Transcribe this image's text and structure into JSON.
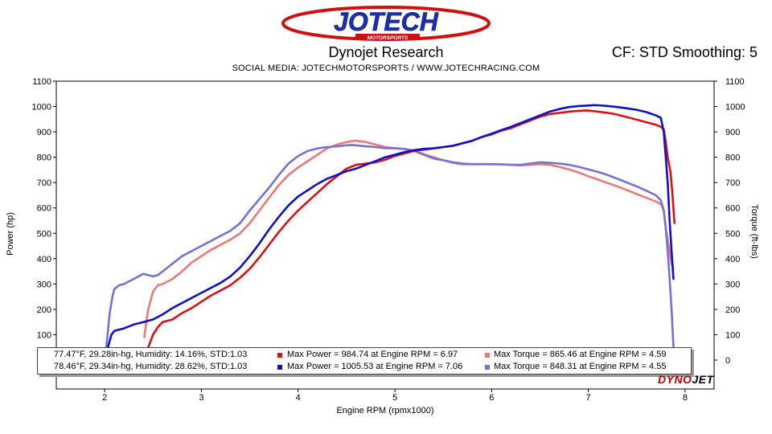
{
  "header": {
    "logo_text": "JOTECH",
    "logo_subtext": "MOTORSPORTS",
    "title": "Dynojet Research",
    "correction": "CF: STD Smoothing: 5",
    "subtitle": "SOCIAL MEDIA: JOTECHMOTORSPORTS   /   WWW.JOTECHRACING.COM"
  },
  "branding": {
    "dyno_a": "DYNO",
    "dyno_b": "JET"
  },
  "colors": {
    "run1_power": "#e01010",
    "run1_torque": "#ee7878",
    "run2_power": "#1010c8",
    "run2_torque": "#7272dc"
  },
  "legend": {
    "rows": [
      {
        "conditions": "77.47°F, 29.28in-hg, Humidity: 14.16%, STD:1.03",
        "power": "Max Power = 984.74 at Engine RPM = 6.97",
        "torque": "Max Torque = 865.46 at Engine RPM = 4.59"
      },
      {
        "conditions": "78.46°F, 29.34in-hg, Humidity: 28.62%, STD:1.03",
        "power": "Max Power = 1005.53 at Engine RPM = 7.06",
        "torque": "Max Torque = 848.31 at Engine RPM = 4.55"
      }
    ]
  },
  "chart_data": {
    "type": "line",
    "xlabel": "Engine RPM (rpmx1000)",
    "ylabel": "Power (hp)",
    "y2label": "Torque (ft-lbs)",
    "xlim": [
      1.5,
      8.3
    ],
    "ylim": [
      0,
      1100
    ],
    "y2lim": [
      0,
      1100
    ],
    "xticks": [
      "2",
      "3",
      "4",
      "5",
      "6",
      "7",
      "8"
    ],
    "yticks": [
      "100",
      "200",
      "300",
      "400",
      "500",
      "600",
      "700",
      "800",
      "900",
      "1000",
      "1100"
    ],
    "y2ticks": [
      "0",
      "100",
      "200",
      "300",
      "400",
      "500",
      "600",
      "700",
      "800",
      "900",
      "1000",
      "1100"
    ],
    "grid": false,
    "series": [
      {
        "name": "Run 1 Power",
        "color_key": "run1_power",
        "x": [
          2.43,
          2.45,
          2.5,
          2.55,
          2.6,
          2.7,
          2.8,
          2.9,
          3.0,
          3.1,
          3.2,
          3.3,
          3.4,
          3.5,
          3.6,
          3.7,
          3.8,
          3.9,
          4.0,
          4.1,
          4.2,
          4.3,
          4.4,
          4.5,
          4.6,
          4.7,
          4.8,
          4.9,
          5.0,
          5.1,
          5.2,
          5.3,
          5.4,
          5.5,
          5.6,
          5.7,
          5.8,
          5.9,
          6.0,
          6.1,
          6.2,
          6.3,
          6.4,
          6.5,
          6.6,
          6.7,
          6.8,
          6.9,
          6.97,
          7.0,
          7.1,
          7.2,
          7.3,
          7.4,
          7.5,
          7.6,
          7.7,
          7.75,
          7.78,
          7.8,
          7.82,
          7.85,
          7.87,
          7.89
        ],
        "y": [
          10,
          50,
          100,
          130,
          150,
          160,
          185,
          205,
          230,
          255,
          275,
          295,
          325,
          360,
          405,
          455,
          505,
          550,
          590,
          625,
          660,
          695,
          725,
          755,
          770,
          775,
          780,
          790,
          805,
          815,
          825,
          830,
          835,
          840,
          845,
          855,
          865,
          880,
          890,
          905,
          915,
          930,
          945,
          960,
          970,
          975,
          980,
          983,
          984.74,
          984,
          980,
          975,
          968,
          958,
          948,
          938,
          928,
          920,
          910,
          860,
          800,
          740,
          650,
          540
        ]
      },
      {
        "name": "Run 1 Torque",
        "color_key": "run1_torque",
        "x": [
          2.41,
          2.43,
          2.45,
          2.5,
          2.55,
          2.6,
          2.7,
          2.8,
          2.9,
          3.0,
          3.1,
          3.2,
          3.3,
          3.4,
          3.5,
          3.6,
          3.7,
          3.8,
          3.9,
          4.0,
          4.1,
          4.2,
          4.3,
          4.4,
          4.5,
          4.59,
          4.7,
          4.8,
          4.9,
          5.0,
          5.1,
          5.2,
          5.3,
          5.4,
          5.5,
          5.6,
          5.7,
          5.8,
          5.9,
          6.0,
          6.1,
          6.2,
          6.3,
          6.4,
          6.5,
          6.6,
          6.7,
          6.8,
          6.9,
          7.0,
          7.1,
          7.2,
          7.3,
          7.4,
          7.5,
          7.6,
          7.7,
          7.75,
          7.78,
          7.8,
          7.83,
          7.86,
          7.88
        ],
        "y": [
          90,
          150,
          200,
          270,
          295,
          300,
          320,
          350,
          385,
          410,
          435,
          455,
          475,
          500,
          540,
          590,
          640,
          690,
          730,
          760,
          785,
          810,
          835,
          850,
          860,
          865.46,
          860,
          850,
          840,
          836,
          832,
          825,
          812,
          800,
          788,
          778,
          772,
          772,
          772,
          772,
          772,
          770,
          768,
          770,
          773,
          770,
          762,
          752,
          740,
          725,
          712,
          698,
          685,
          670,
          655,
          640,
          625,
          615,
          590,
          520,
          450,
          380,
          360
        ]
      },
      {
        "name": "Run 2 Power",
        "color_key": "run2_power",
        "x": [
          2.02,
          2.04,
          2.07,
          2.1,
          2.15,
          2.2,
          2.3,
          2.4,
          2.5,
          2.6,
          2.7,
          2.8,
          2.9,
          3.0,
          3.1,
          3.2,
          3.3,
          3.4,
          3.5,
          3.6,
          3.7,
          3.8,
          3.9,
          4.0,
          4.1,
          4.2,
          4.3,
          4.4,
          4.5,
          4.6,
          4.7,
          4.8,
          4.9,
          5.0,
          5.1,
          5.2,
          5.3,
          5.4,
          5.5,
          5.6,
          5.7,
          5.8,
          5.9,
          6.0,
          6.1,
          6.2,
          6.3,
          6.4,
          6.5,
          6.6,
          6.7,
          6.8,
          6.9,
          7.0,
          7.06,
          7.1,
          7.2,
          7.3,
          7.4,
          7.5,
          7.6,
          7.7,
          7.75,
          7.78,
          7.8,
          7.82,
          7.84,
          7.86,
          7.88
        ],
        "y": [
          10,
          60,
          100,
          115,
          120,
          125,
          140,
          150,
          160,
          180,
          205,
          225,
          245,
          265,
          285,
          305,
          330,
          365,
          410,
          460,
          515,
          565,
          610,
          645,
          670,
          695,
          715,
          730,
          745,
          755,
          770,
          785,
          800,
          810,
          820,
          828,
          833,
          835,
          840,
          845,
          855,
          865,
          880,
          893,
          907,
          920,
          935,
          950,
          965,
          980,
          990,
          998,
          1002,
          1004,
          1005.53,
          1005,
          1002,
          998,
          993,
          987,
          978,
          965,
          955,
          900,
          800,
          700,
          550,
          430,
          320
        ]
      },
      {
        "name": "Run 2 Torque",
        "color_key": "run2_torque",
        "x": [
          2.01,
          2.03,
          2.05,
          2.08,
          2.1,
          2.15,
          2.2,
          2.3,
          2.4,
          2.5,
          2.55,
          2.6,
          2.7,
          2.8,
          2.9,
          3.0,
          3.1,
          3.2,
          3.3,
          3.4,
          3.5,
          3.6,
          3.7,
          3.8,
          3.9,
          4.0,
          4.1,
          4.2,
          4.3,
          4.4,
          4.5,
          4.55,
          4.6,
          4.7,
          4.8,
          4.9,
          5.0,
          5.1,
          5.2,
          5.3,
          5.4,
          5.5,
          5.6,
          5.7,
          5.8,
          5.9,
          6.0,
          6.1,
          6.2,
          6.3,
          6.4,
          6.5,
          6.6,
          6.7,
          6.8,
          6.9,
          7.0,
          7.1,
          7.2,
          7.3,
          7.4,
          7.5,
          7.6,
          7.7,
          7.75,
          7.78,
          7.8,
          7.82,
          7.84,
          7.86,
          7.88
        ],
        "y": [
          30,
          100,
          180,
          250,
          280,
          295,
          300,
          320,
          340,
          330,
          335,
          350,
          380,
          410,
          430,
          450,
          470,
          490,
          510,
          540,
          590,
          635,
          680,
          730,
          775,
          805,
          825,
          835,
          840,
          843,
          847,
          848.31,
          847,
          843,
          840,
          836,
          835,
          833,
          825,
          810,
          795,
          788,
          780,
          775,
          773,
          773,
          773,
          772,
          770,
          770,
          775,
          780,
          778,
          775,
          770,
          762,
          752,
          742,
          730,
          715,
          700,
          685,
          668,
          650,
          630,
          590,
          520,
          430,
          320,
          200,
          50
        ]
      }
    ]
  }
}
